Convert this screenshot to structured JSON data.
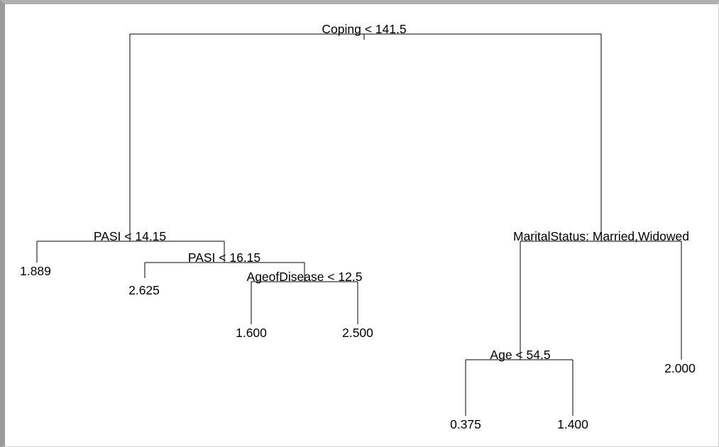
{
  "tree": {
    "root_split": "Coping < 141.5",
    "left": {
      "split": "PASI < 14.15",
      "leaf_left": "1.889",
      "right": {
        "split": "PASI < 16.15",
        "leaf_left": "2.625",
        "right": {
          "split": "AgeofDisease < 12.5",
          "leaf_left": "1.600",
          "leaf_right": "2.500"
        }
      }
    },
    "right": {
      "split": "MaritalStatus: Married,Widowed",
      "left": {
        "split": "Age < 54.5",
        "leaf_left": "0.375",
        "leaf_right": "1.400"
      },
      "leaf_right": "2.000"
    }
  }
}
